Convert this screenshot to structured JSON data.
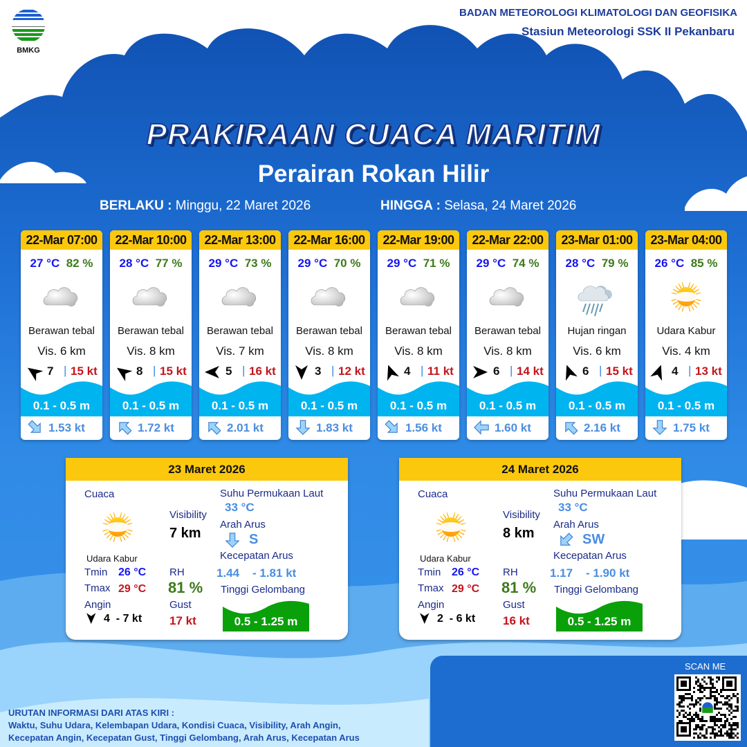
{
  "header": {
    "logo_text": "BMKG",
    "agency": "BADAN METEOROLOGI KLIMATOLOGI DAN GEOFISIKA",
    "station": "Stasiun Meteorologi SSK II Pekanbaru"
  },
  "title": "PRAKIRAAN CUACA MARITIM",
  "subtitle": "Perairan Rokan Hilir",
  "validity": {
    "from_label": "BERLAKU :",
    "from_value": "Minggu, 22 Maret 2026",
    "to_label": "HINGGA :",
    "to_value": "Selasa, 24 Maret 2026"
  },
  "forecasts": [
    {
      "time": "22-Mar 07:00",
      "temp": "27 °C",
      "rh": "82 %",
      "icon": "cloudy",
      "condition": "Berawan tebal",
      "vis": "Vis.  6 km",
      "wind_dir_deg": -55,
      "wind_speed": "7",
      "gust": "15 kt",
      "wave": "0.1 - 0.5 m",
      "current_dir_deg": 135,
      "current_speed": "1.53 kt"
    },
    {
      "time": "22-Mar 10:00",
      "temp": "28 °C",
      "rh": "77 %",
      "icon": "cloudy",
      "condition": "Berawan tebal",
      "vis": "Vis. 8 km",
      "wind_dir_deg": -55,
      "wind_speed": "8",
      "gust": "15 kt",
      "wave": "0.1 - 0.5 m",
      "current_dir_deg": -45,
      "current_speed": "1.72 kt"
    },
    {
      "time": "22-Mar 13:00",
      "temp": "29 °C",
      "rh": "73 %",
      "icon": "cloudy",
      "condition": "Berawan tebal",
      "vis": "Vis. 7 km",
      "wind_dir_deg": -90,
      "wind_speed": "5",
      "gust": "16 kt",
      "wave": "0.1 - 0.5 m",
      "current_dir_deg": -45,
      "current_speed": "2.01 kt"
    },
    {
      "time": "22-Mar 16:00",
      "temp": "29 °C",
      "rh": "70 %",
      "icon": "cloudy",
      "condition": "Berawan tebal",
      "vis": "Vis.  8 km",
      "wind_dir_deg": 180,
      "wind_speed": "3",
      "gust": "12 kt",
      "wave": "0.1 - 0.5 m",
      "current_dir_deg": 180,
      "current_speed": "1.83 kt"
    },
    {
      "time": "22-Mar 19:00",
      "temp": "29 °C",
      "rh": "71 %",
      "icon": "cloudy",
      "condition": "Berawan tebal",
      "vis": "Vis.  8 km",
      "wind_dir_deg": -20,
      "wind_speed": "4",
      "gust": "11 kt",
      "wave": "0.1 - 0.5 m",
      "current_dir_deg": 135,
      "current_speed": "1.56 kt"
    },
    {
      "time": "22-Mar 22:00",
      "temp": "29 °C",
      "rh": "74 %",
      "icon": "cloudy",
      "condition": "Berawan tebal",
      "vis": "Vis.  8 km",
      "wind_dir_deg": 90,
      "wind_speed": "6",
      "gust": "14 kt",
      "wave": "0.1 - 0.5 m",
      "current_dir_deg": -90,
      "current_speed": "1.60 kt"
    },
    {
      "time": "23-Mar 01:00",
      "temp": "28 °C",
      "rh": "79 %",
      "icon": "rain",
      "condition": "Hujan ringan",
      "vis": "Vis.  6 km",
      "wind_dir_deg": -20,
      "wind_speed": "6",
      "gust": "15 kt",
      "wave": "0.1 - 0.5 m",
      "current_dir_deg": -45,
      "current_speed": "2.16 kt"
    },
    {
      "time": "23-Mar 04:00",
      "temp": "26 °C",
      "rh": "85 %",
      "icon": "haze",
      "condition": "Udara Kabur",
      "vis": "Vis.  4 km",
      "wind_dir_deg": 20,
      "wind_speed": "4",
      "gust": "13 kt",
      "wave": "0.1 - 0.5 m",
      "current_dir_deg": 180,
      "current_speed": "1.75 kt"
    }
  ],
  "daily_labels": {
    "weather": "Cuaca",
    "visibility": "Visibility",
    "sst": "Suhu Permukaan Laut",
    "current_dir": "Arah Arus",
    "current_speed": "Kecepatan Arus",
    "wave": "Tinggi Gelombang",
    "tmin": "Tmin",
    "tmax": "Tmax",
    "rh": "RH",
    "wind": "Angin",
    "gust": "Gust"
  },
  "daily": [
    {
      "date": "23 Maret 2026",
      "icon": "haze",
      "condition": "Udara Kabur",
      "visibility": "7 km",
      "sst": "33 °C",
      "current_dir": "S",
      "current_dir_deg": 180,
      "current_min": "1.44",
      "current_max": "- 1.81 kt",
      "wave": "0.5 - 1.25 m",
      "tmin": "26 °C",
      "tmax": "29 °C",
      "rh": "81 %",
      "wind_dir_deg": 180,
      "wind_min": "4",
      "wind_max": "- 7 kt",
      "gust": "17 kt"
    },
    {
      "date": "24 Maret 2026",
      "icon": "haze",
      "condition": "Udara Kabur",
      "visibility": "8 km",
      "sst": "33 °C",
      "current_dir": "SW",
      "current_dir_deg": -135,
      "current_min": "1.17",
      "current_max": "- 1.90 kt",
      "wave": "0.5 - 1.25 m",
      "tmin": "26 °C",
      "tmax": "29 °C",
      "rh": "81 %",
      "wind_dir_deg": 180,
      "wind_min": "2",
      "wind_max": "- 6 kt",
      "gust": "16 kt"
    }
  ],
  "qr": {
    "label": "SCAN ME"
  },
  "footer": {
    "heading": "URUTAN INFORMASI DARI ATAS KIRI :",
    "line1": "Waktu, Suhu Udara, Kelembapan Udara, Kondisi Cuaca, Visibility, Arah Angin,",
    "line2": "Kecepatan Angin, Kecepatan Gust, Tinggi Gelombang, Arah Arus, Kecepatan Arus"
  },
  "colors": {
    "card_header": "#fcc80e",
    "temp": "#1414f0",
    "rh": "#3c7a1a",
    "gust": "#c4141c",
    "wave_small": "#00b4f0",
    "wave_daily": "#0aa00a",
    "current": "#4a8ee0"
  }
}
